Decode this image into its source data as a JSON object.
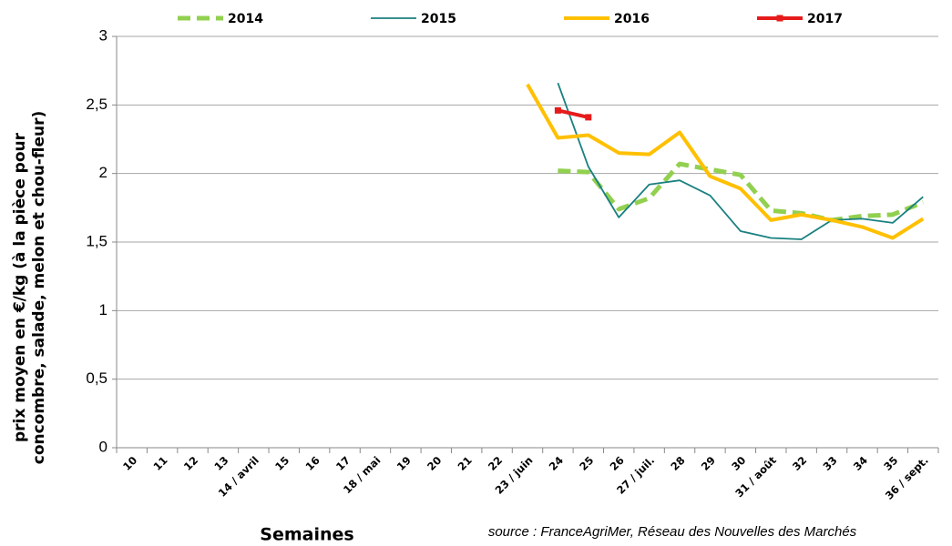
{
  "chart_data": {
    "type": "line",
    "y_label": [
      "prix moyen en €/kg (à la pièce pour",
      "concombre, salade, melon et chou-fleur)"
    ],
    "x_label": "Semaines",
    "source": "source : FranceAgriMer, Réseau des Nouvelles des Marchés",
    "categories": [
      "10",
      "11",
      "12",
      "13",
      "14 / avril",
      "15",
      "16",
      "17",
      "18 / mai",
      "19",
      "20",
      "21",
      "22",
      "23 / juin",
      "24",
      "25",
      "26",
      "27 / juil.",
      "28",
      "29",
      "30",
      "31 / août",
      "32",
      "33",
      "34",
      "35",
      "36 / sept."
    ],
    "series": [
      {
        "name": "2014",
        "color": "#92d050",
        "dashed": true,
        "width": 5,
        "marker": null,
        "values": [
          null,
          null,
          null,
          null,
          null,
          null,
          null,
          null,
          null,
          null,
          null,
          null,
          null,
          null,
          2.02,
          2.01,
          1.74,
          1.82,
          2.07,
          2.03,
          1.99,
          1.73,
          1.71,
          1.66,
          1.69,
          1.7,
          1.79
        ]
      },
      {
        "name": "2015",
        "color": "#1a8080",
        "dashed": false,
        "width": 1.8,
        "marker": null,
        "values": [
          null,
          null,
          null,
          null,
          null,
          null,
          null,
          null,
          null,
          null,
          null,
          null,
          null,
          null,
          2.66,
          2.05,
          1.68,
          1.92,
          1.95,
          1.84,
          1.58,
          1.53,
          1.52,
          1.66,
          1.67,
          1.64,
          1.83
        ]
      },
      {
        "name": "2016",
        "color": "#ffc000",
        "dashed": false,
        "width": 4,
        "marker": null,
        "values": [
          null,
          null,
          null,
          null,
          null,
          null,
          null,
          null,
          null,
          null,
          null,
          null,
          null,
          2.65,
          2.26,
          2.28,
          2.15,
          2.14,
          2.3,
          1.98,
          1.89,
          1.66,
          1.7,
          1.66,
          1.61,
          1.53,
          1.67
        ]
      },
      {
        "name": "2017",
        "color": "#e61b1b",
        "dashed": false,
        "width": 4,
        "marker": "square",
        "values": [
          null,
          null,
          null,
          null,
          null,
          null,
          null,
          null,
          null,
          null,
          null,
          null,
          null,
          null,
          2.46,
          2.41,
          null,
          null,
          null,
          null,
          null,
          null,
          null,
          null,
          null,
          null,
          null
        ]
      }
    ],
    "ylim": [
      0,
      3
    ],
    "yticks": [
      0,
      {
        "value": 0.5,
        "label": "0,5"
      },
      1,
      {
        "value": 1.5,
        "label": "1,5"
      },
      2,
      {
        "value": 2.5,
        "label": "2,5"
      },
      3
    ],
    "grid": true,
    "legend": "top"
  }
}
